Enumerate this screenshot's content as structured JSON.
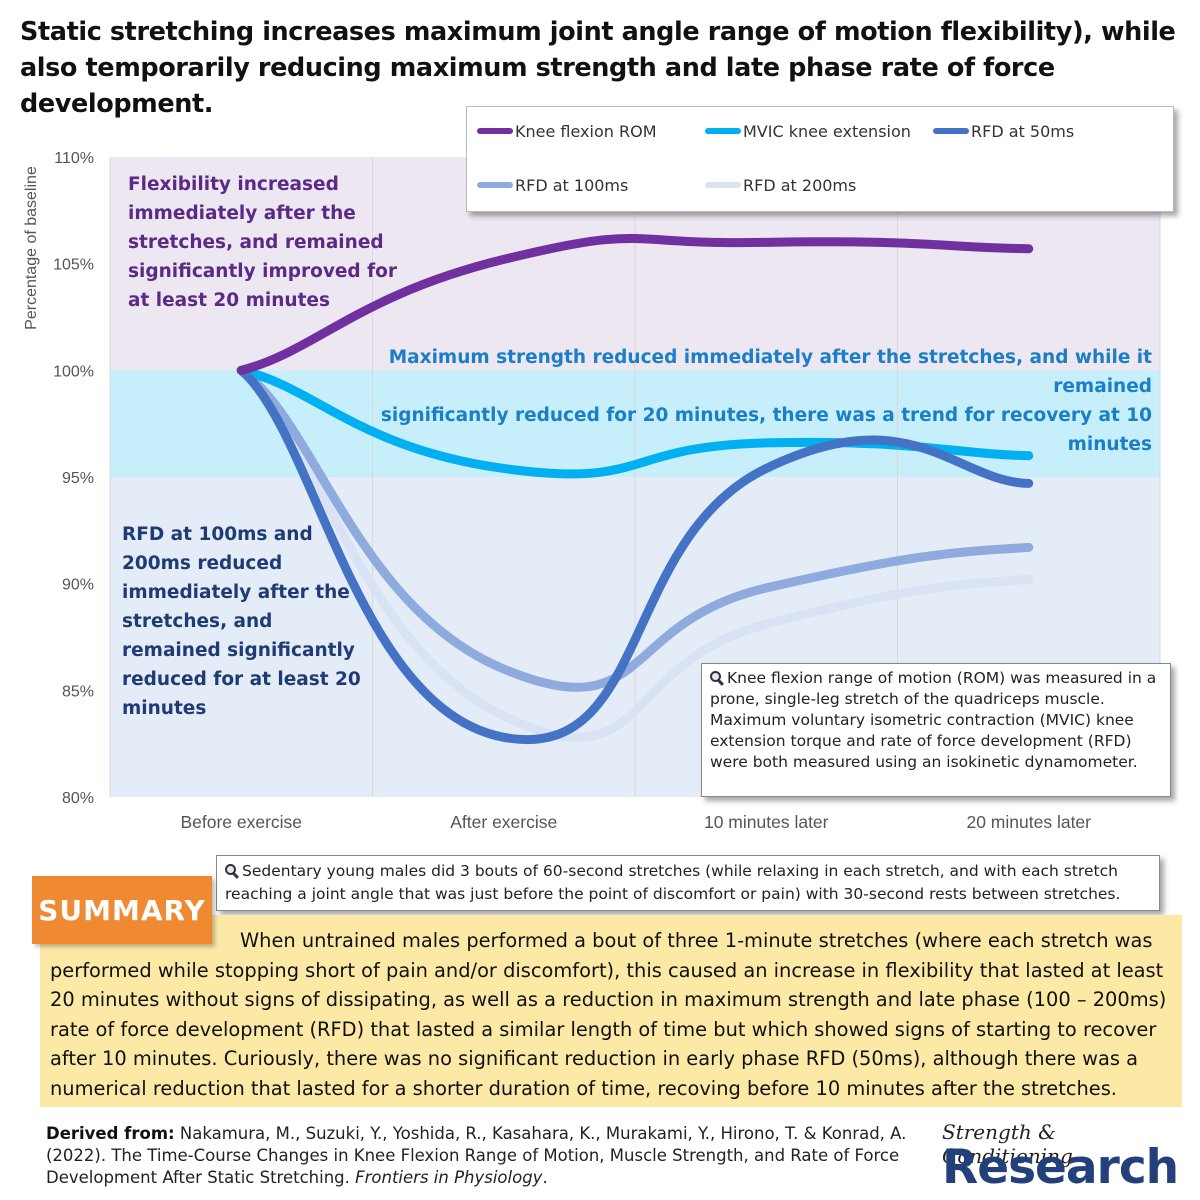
{
  "title": "Static stretching increases maximum joint angle range of motion flexibility), while also temporarily reducing maximum strength and late phase rate of force development.",
  "chart_data": {
    "type": "line",
    "categories": [
      "Before exercise",
      "After exercise",
      "10 minutes later",
      "20 minutes later"
    ],
    "ylabel": "Percentage of baseline",
    "xlabel": "",
    "ylim": [
      0.8,
      1.1
    ],
    "yticks": [
      "80%",
      "85%",
      "90%",
      "95%",
      "100%",
      "105%",
      "110%"
    ],
    "grid": "vertical",
    "legend_position": "top-right",
    "smooth": true,
    "series": [
      {
        "name": "Knee flexion ROM",
        "color": "#7030a0",
        "values": [
          1.0,
          1.052,
          1.06,
          1.057
        ]
      },
      {
        "name": "MVIC knee extension",
        "color": "#00b0f0",
        "values": [
          1.0,
          0.954,
          0.966,
          0.96
        ]
      },
      {
        "name": "RFD at 50ms",
        "color": "#4472c4",
        "values": [
          1.0,
          0.828,
          0.954,
          0.947
        ]
      },
      {
        "name": "RFD at 100ms",
        "color": "#8faadc",
        "values": [
          1.0,
          0.86,
          0.898,
          0.917
        ]
      },
      {
        "name": "RFD at 200ms",
        "color": "#dae3f3",
        "values": [
          1.0,
          0.838,
          0.881,
          0.902
        ]
      }
    ],
    "bands": [
      {
        "from": 1.0,
        "to": 1.1,
        "color": "#ece7f1"
      },
      {
        "from": 0.95,
        "to": 1.0,
        "color": "#c6eefb"
      },
      {
        "from": 0.8,
        "to": 0.95,
        "color": "#e4ecf7"
      }
    ]
  },
  "annotations": {
    "flexibility": "Flexibility increased immediately after the stretches, and remained significantly improved for at least 20 minutes",
    "strength_line1": "Maximum strength reduced immediately after the stretches, and while it remained",
    "strength_line2": "significantly reduced for 20 minutes, there was a trend for recovery at 10 minutes",
    "rfd": "RFD at 100ms and 200ms reduced immediately after  the stretches, and remained significantly reduced for at least 20 minutes"
  },
  "notes": {
    "rom": "Knee flexion range of motion (ROM) was measured in a prone, single-leg stretch of the quadriceps muscle. Maximum voluntary isometric contraction (MVIC) knee extension torque and rate of force development (RFD) were both measured using an isokinetic dynamometer.",
    "subjects": "Sedentary young males did 3 bouts of 60-second stretches (while relaxing in each stretch, and with each stretch reaching a joint angle that was just before the point of discomfort or pain) with 30-second rests between stretches."
  },
  "summary": {
    "badge": "SUMMARY",
    "text": "When untrained males performed a bout of three 1-minute stretches (where each stretch was performed while stopping short of pain and/or discomfort), this caused an increase in flexibility that lasted at least 20 minutes without signs of dissipating, as well as a reduction in maximum strength and late phase (100 – 200ms) rate of force development (RFD) that lasted a similar length of time but which showed signs of starting to recover after 10 minutes. Curiously, there was no significant reduction in early phase RFD (50ms), although there was a numerical reduction that lasted for a shorter duration of time, recoving before 10 minutes after the stretches."
  },
  "citation": {
    "label": "Derived from:",
    "text": "Nakamura, M., Suzuki, Y., Yoshida, R., Kasahara, K., Murakami, Y., Hirono, T. & Konrad, A. (2022). The Time-Course Changes in Knee Flexion Range of Motion, Muscle Strength, and Rate of Force Development After Static Stretching.",
    "journal": "Frontiers in Physiology",
    "end": "."
  },
  "logo": {
    "top": "Strength & Conditioning",
    "main": "Research"
  }
}
